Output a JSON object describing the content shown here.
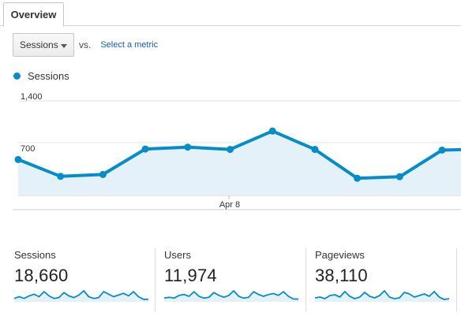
{
  "tabs": [
    {
      "label": "Overview"
    }
  ],
  "controls": {
    "metric_select": "Sessions",
    "vs_label": "vs.",
    "select_metric_link": "Select a metric"
  },
  "legend": {
    "series": "Sessions",
    "color": "#058dc7"
  },
  "chart_data": {
    "type": "area",
    "x_tick_labels": [
      "Apr 8"
    ],
    "y_tick_labels": [
      "1,400",
      "700"
    ],
    "ylim": [
      0,
      1400
    ],
    "series": [
      {
        "name": "Sessions",
        "color": "#058dc7",
        "values": [
          480,
          255,
          280,
          620,
          645,
          615,
          860,
          615,
          230,
          250,
          605,
          620
        ]
      }
    ]
  },
  "metrics": [
    {
      "label": "Sessions",
      "value": "18,660",
      "spark": [
        4,
        6,
        4,
        7,
        9,
        6,
        12,
        7,
        4,
        5,
        11,
        7,
        5,
        8,
        13,
        6,
        4,
        5,
        12,
        9,
        6,
        8,
        10,
        7,
        12,
        6,
        3,
        3
      ]
    },
    {
      "label": "Users",
      "value": "11,974",
      "spark": [
        4,
        5,
        4,
        7,
        8,
        6,
        11,
        6,
        4,
        5,
        10,
        7,
        5,
        7,
        12,
        6,
        4,
        5,
        11,
        8,
        6,
        8,
        9,
        7,
        11,
        6,
        3,
        3
      ]
    },
    {
      "label": "Pageviews",
      "value": "38,110",
      "spark": [
        5,
        6,
        4,
        8,
        9,
        6,
        13,
        7,
        4,
        6,
        12,
        7,
        5,
        8,
        14,
        6,
        4,
        5,
        12,
        10,
        6,
        8,
        10,
        7,
        13,
        6,
        3,
        4
      ]
    }
  ]
}
